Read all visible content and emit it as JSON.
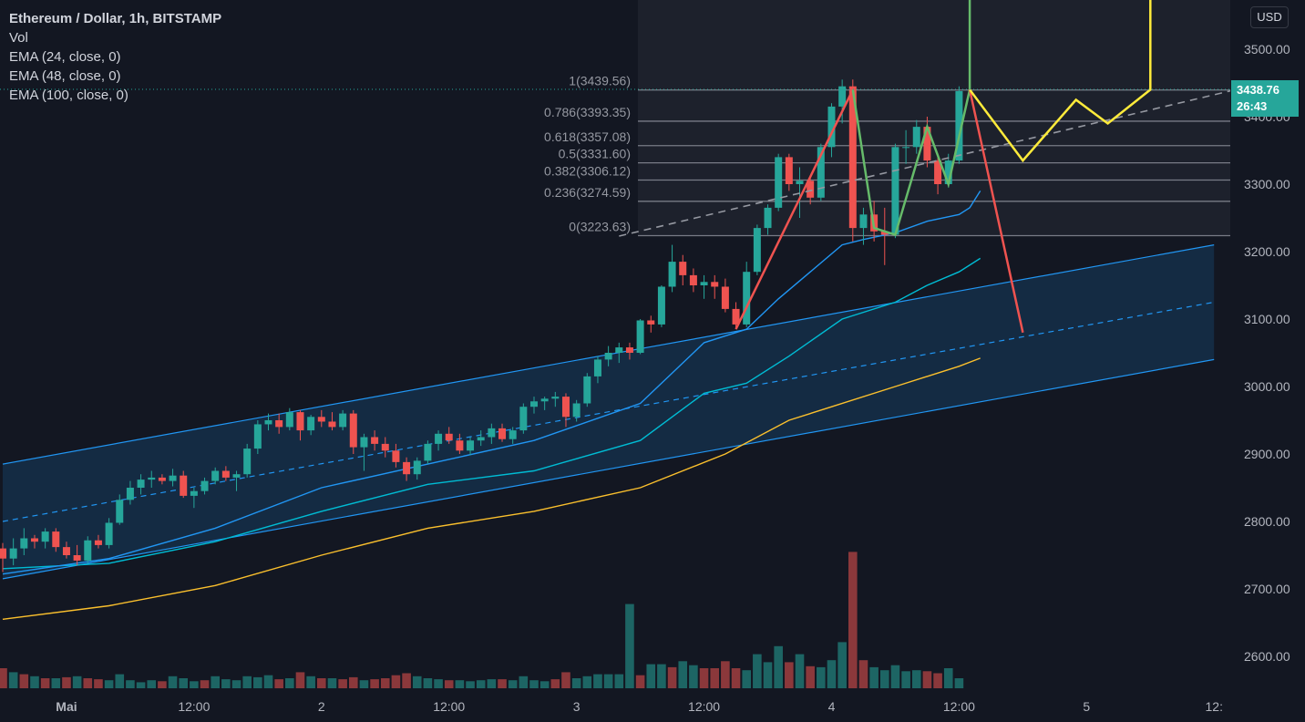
{
  "header": {
    "title": "Ethereum / Dollar, 1h, BITSTAMP",
    "indicators": [
      "Vol",
      "EMA (24, close, 0)",
      "EMA (48, close, 0)",
      "EMA (100, close, 0)"
    ]
  },
  "currency_button": "USD",
  "last_price": {
    "price": "3438.76",
    "countdown": "26:43"
  },
  "colors": {
    "background": "#131722",
    "up": "#26a69a",
    "down": "#ef5350",
    "ema24": "#2196f3",
    "ema48": "#00bcd4",
    "ema100": "#fbc02d",
    "channel": "#2196f3",
    "pattern_green": "#66bb6a",
    "pattern_red": "#ef5350",
    "projection_yellow": "#ffeb3b",
    "fib_line": "#787b86"
  },
  "chart_data": {
    "type": "candlestick",
    "y_axis": {
      "min": 2550,
      "max": 3580,
      "ticks": [
        "3500.00",
        "3400.00",
        "3300.00",
        "3200.00",
        "3100.00",
        "3000.00",
        "2900.00",
        "2800.00",
        "2700.00",
        "2600.00"
      ]
    },
    "x_axis": {
      "ticks": [
        {
          "label": "Mai",
          "bar": 6
        },
        {
          "label": "12:00",
          "bar": 18
        },
        {
          "label": "2",
          "bar": 30
        },
        {
          "label": "12:00",
          "bar": 42
        },
        {
          "label": "3",
          "bar": 54
        },
        {
          "label": "12:00",
          "bar": 66
        },
        {
          "label": "4",
          "bar": 78
        },
        {
          "label": "12:00",
          "bar": 90
        },
        {
          "label": "5",
          "bar": 102
        },
        {
          "label": "12:",
          "bar": 114
        }
      ]
    },
    "candles": [
      [
        2760,
        2768,
        2725,
        2745
      ],
      [
        2745,
        2775,
        2735,
        2760
      ],
      [
        2760,
        2790,
        2750,
        2775
      ],
      [
        2775,
        2780,
        2760,
        2770
      ],
      [
        2770,
        2790,
        2760,
        2785
      ],
      [
        2785,
        2790,
        2755,
        2762
      ],
      [
        2762,
        2770,
        2745,
        2750
      ],
      [
        2750,
        2765,
        2735,
        2742
      ],
      [
        2742,
        2778,
        2738,
        2772
      ],
      [
        2772,
        2780,
        2760,
        2765
      ],
      [
        2765,
        2805,
        2760,
        2798
      ],
      [
        2798,
        2840,
        2795,
        2832
      ],
      [
        2832,
        2860,
        2825,
        2850
      ],
      [
        2850,
        2870,
        2840,
        2862
      ],
      [
        2862,
        2875,
        2850,
        2865
      ],
      [
        2865,
        2870,
        2855,
        2860
      ],
      [
        2860,
        2878,
        2852,
        2868
      ],
      [
        2868,
        2875,
        2835,
        2838
      ],
      [
        2838,
        2850,
        2820,
        2845
      ],
      [
        2845,
        2865,
        2840,
        2860
      ],
      [
        2860,
        2880,
        2855,
        2875
      ],
      [
        2875,
        2882,
        2860,
        2865
      ],
      [
        2865,
        2875,
        2845,
        2870
      ],
      [
        2870,
        2915,
        2865,
        2908
      ],
      [
        2908,
        2950,
        2900,
        2944
      ],
      [
        2944,
        2960,
        2935,
        2950
      ],
      [
        2950,
        2960,
        2930,
        2940
      ],
      [
        2940,
        2968,
        2935,
        2962
      ],
      [
        2962,
        2965,
        2920,
        2935
      ],
      [
        2935,
        2958,
        2928,
        2955
      ],
      [
        2955,
        2965,
        2940,
        2948
      ],
      [
        2948,
        2962,
        2935,
        2940
      ],
      [
        2940,
        2965,
        2935,
        2960
      ],
      [
        2960,
        2965,
        2900,
        2910
      ],
      [
        2910,
        2930,
        2875,
        2925
      ],
      [
        2925,
        2935,
        2905,
        2915
      ],
      [
        2915,
        2925,
        2895,
        2905
      ],
      [
        2905,
        2915,
        2880,
        2888
      ],
      [
        2888,
        2895,
        2860,
        2870
      ],
      [
        2870,
        2895,
        2862,
        2890
      ],
      [
        2890,
        2920,
        2885,
        2915
      ],
      [
        2915,
        2935,
        2905,
        2930
      ],
      [
        2930,
        2940,
        2915,
        2920
      ],
      [
        2920,
        2930,
        2900,
        2905
      ],
      [
        2905,
        2925,
        2898,
        2920
      ],
      [
        2920,
        2935,
        2912,
        2925
      ],
      [
        2925,
        2945,
        2915,
        2938
      ],
      [
        2938,
        2945,
        2918,
        2922
      ],
      [
        2922,
        2940,
        2915,
        2935
      ],
      [
        2935,
        2975,
        2930,
        2970
      ],
      [
        2970,
        2985,
        2960,
        2978
      ],
      [
        2978,
        2985,
        2965,
        2982
      ],
      [
        2982,
        2992,
        2970,
        2985
      ],
      [
        2985,
        2990,
        2940,
        2955
      ],
      [
        2955,
        2980,
        2948,
        2975
      ],
      [
        2975,
        3020,
        2970,
        3015
      ],
      [
        3015,
        3045,
        3005,
        3040
      ],
      [
        3040,
        3060,
        3030,
        3050
      ],
      [
        3050,
        3065,
        3035,
        3058
      ],
      [
        3058,
        3065,
        3040,
        3050
      ],
      [
        3050,
        3100,
        3048,
        3098
      ],
      [
        3098,
        3105,
        3080,
        3092
      ],
      [
        3092,
        3150,
        3088,
        3148
      ],
      [
        3148,
        3210,
        3140,
        3185
      ],
      [
        3185,
        3195,
        3150,
        3165
      ],
      [
        3165,
        3175,
        3140,
        3150
      ],
      [
        3150,
        3165,
        3130,
        3155
      ],
      [
        3155,
        3165,
        3130,
        3148
      ],
      [
        3148,
        3160,
        3110,
        3115
      ],
      [
        3115,
        3125,
        3085,
        3092
      ],
      [
        3092,
        3185,
        3088,
        3170
      ],
      [
        3170,
        3240,
        3165,
        3235
      ],
      [
        3235,
        3270,
        3225,
        3265
      ],
      [
        3265,
        3345,
        3260,
        3340
      ],
      [
        3340,
        3345,
        3290,
        3300
      ],
      [
        3300,
        3325,
        3250,
        3305
      ],
      [
        3305,
        3310,
        3270,
        3280
      ],
      [
        3280,
        3360,
        3275,
        3355
      ],
      [
        3355,
        3420,
        3340,
        3415
      ],
      [
        3415,
        3455,
        3390,
        3445
      ],
      [
        3445,
        3455,
        3215,
        3235
      ],
      [
        3235,
        3265,
        3210,
        3255
      ],
      [
        3255,
        3275,
        3215,
        3230
      ],
      [
        3230,
        3265,
        3180,
        3225
      ],
      [
        3225,
        3360,
        3220,
        3355
      ],
      [
        3355,
        3380,
        3330,
        3355
      ],
      [
        3355,
        3395,
        3345,
        3385
      ],
      [
        3385,
        3400,
        3325,
        3335
      ],
      [
        3335,
        3345,
        3285,
        3300
      ],
      [
        3300,
        3345,
        3295,
        3335
      ],
      [
        3335,
        3445,
        3330,
        3438
      ]
    ],
    "volume": [
      [
        1,
        "dn"
      ],
      [
        0.8,
        "up"
      ],
      [
        0.7,
        "dn"
      ],
      [
        0.6,
        "up"
      ],
      [
        0.5,
        "dn"
      ],
      [
        0.5,
        "up"
      ],
      [
        0.55,
        "dn"
      ],
      [
        0.6,
        "up"
      ],
      [
        0.5,
        "dn"
      ],
      [
        0.45,
        "dn"
      ],
      [
        0.4,
        "up"
      ],
      [
        0.7,
        "up"
      ],
      [
        0.4,
        "up"
      ],
      [
        0.3,
        "up"
      ],
      [
        0.4,
        "up"
      ],
      [
        0.35,
        "dn"
      ],
      [
        0.6,
        "up"
      ],
      [
        0.5,
        "up"
      ],
      [
        0.35,
        "up"
      ],
      [
        0.4,
        "dn"
      ],
      [
        0.6,
        "up"
      ],
      [
        0.45,
        "up"
      ],
      [
        0.4,
        "up"
      ],
      [
        0.6,
        "up"
      ],
      [
        0.55,
        "up"
      ],
      [
        0.65,
        "up"
      ],
      [
        0.45,
        "dn"
      ],
      [
        0.5,
        "up"
      ],
      [
        0.8,
        "dn"
      ],
      [
        0.6,
        "up"
      ],
      [
        0.5,
        "dn"
      ],
      [
        0.5,
        "up"
      ],
      [
        0.45,
        "dn"
      ],
      [
        0.55,
        "dn"
      ],
      [
        0.4,
        "up"
      ],
      [
        0.45,
        "dn"
      ],
      [
        0.5,
        "dn"
      ],
      [
        0.65,
        "dn"
      ],
      [
        0.75,
        "dn"
      ],
      [
        0.6,
        "up"
      ],
      [
        0.5,
        "up"
      ],
      [
        0.45,
        "up"
      ],
      [
        0.4,
        "dn"
      ],
      [
        0.4,
        "up"
      ],
      [
        0.35,
        "up"
      ],
      [
        0.4,
        "up"
      ],
      [
        0.45,
        "up"
      ],
      [
        0.45,
        "dn"
      ],
      [
        0.4,
        "up"
      ],
      [
        0.6,
        "up"
      ],
      [
        0.4,
        "up"
      ],
      [
        0.35,
        "up"
      ],
      [
        0.45,
        "dn"
      ],
      [
        0.8,
        "dn"
      ],
      [
        0.5,
        "up"
      ],
      [
        0.6,
        "up"
      ],
      [
        0.7,
        "up"
      ],
      [
        0.7,
        "up"
      ],
      [
        0.7,
        "up"
      ],
      [
        4.2,
        "up"
      ],
      [
        0.65,
        "dn"
      ],
      [
        1.2,
        "up"
      ],
      [
        1.2,
        "up"
      ],
      [
        1.05,
        "dn"
      ],
      [
        1.35,
        "up"
      ],
      [
        1.15,
        "up"
      ],
      [
        1.0,
        "dn"
      ],
      [
        1.0,
        "dn"
      ],
      [
        1.35,
        "dn"
      ],
      [
        1.0,
        "dn"
      ],
      [
        0.9,
        "up"
      ],
      [
        1.7,
        "up"
      ],
      [
        1.3,
        "up"
      ],
      [
        2.1,
        "up"
      ],
      [
        1.3,
        "dn"
      ],
      [
        1.7,
        "up"
      ],
      [
        1.1,
        "dn"
      ],
      [
        1.05,
        "up"
      ],
      [
        1.4,
        "up"
      ],
      [
        2.3,
        "up"
      ],
      [
        6.8,
        "dn"
      ],
      [
        1.4,
        "dn"
      ],
      [
        1.05,
        "up"
      ],
      [
        0.9,
        "up"
      ],
      [
        1.15,
        "up"
      ],
      [
        0.85,
        "up"
      ],
      [
        0.9,
        "up"
      ],
      [
        0.85,
        "dn"
      ],
      [
        0.75,
        "dn"
      ],
      [
        1.0,
        "up"
      ],
      [
        0.5,
        "up"
      ]
    ],
    "ema24": [
      [
        0,
        2722
      ],
      [
        10,
        2745
      ],
      [
        20,
        2790
      ],
      [
        30,
        2850
      ],
      [
        40,
        2885
      ],
      [
        50,
        2920
      ],
      [
        60,
        2975
      ],
      [
        63,
        3020
      ],
      [
        66,
        3065
      ],
      [
        70,
        3085
      ],
      [
        73,
        3130
      ],
      [
        76,
        3170
      ],
      [
        79,
        3210
      ],
      [
        81,
        3218
      ],
      [
        84,
        3228
      ],
      [
        87,
        3245
      ],
      [
        90,
        3255
      ],
      [
        91,
        3265
      ],
      [
        92,
        3290
      ]
    ],
    "ema48": [
      [
        0,
        2730
      ],
      [
        10,
        2738
      ],
      [
        20,
        2770
      ],
      [
        30,
        2815
      ],
      [
        40,
        2855
      ],
      [
        50,
        2875
      ],
      [
        60,
        2920
      ],
      [
        66,
        2990
      ],
      [
        70,
        3005
      ],
      [
        74,
        3045
      ],
      [
        79,
        3100
      ],
      [
        84,
        3125
      ],
      [
        87,
        3150
      ],
      [
        90,
        3170
      ],
      [
        92,
        3190
      ]
    ],
    "ema100": [
      [
        0,
        2655
      ],
      [
        10,
        2675
      ],
      [
        20,
        2705
      ],
      [
        30,
        2750
      ],
      [
        40,
        2790
      ],
      [
        50,
        2815
      ],
      [
        60,
        2850
      ],
      [
        68,
        2900
      ],
      [
        74,
        2950
      ],
      [
        78,
        2970
      ],
      [
        84,
        3000
      ],
      [
        90,
        3030
      ],
      [
        92,
        3042
      ]
    ],
    "fib_levels": [
      {
        "ratio": "1",
        "price": 3439.56
      },
      {
        "ratio": "0.786",
        "price": 3393.35
      },
      {
        "ratio": "0.618",
        "price": 3357.08
      },
      {
        "ratio": "0.5",
        "price": 3331.6
      },
      {
        "ratio": "0.382",
        "price": 3306.12
      },
      {
        "ratio": "0.236",
        "price": 3274.59
      },
      {
        "ratio": "0",
        "price": 3223.63
      }
    ],
    "channel": {
      "upper": [
        [
          0,
          2885
        ],
        [
          114,
          3210
        ]
      ],
      "lower": [
        [
          0,
          2715
        ],
        [
          114,
          3040
        ]
      ],
      "mid": [
        [
          0,
          2800
        ],
        [
          114,
          3125
        ]
      ]
    },
    "trend_dashed": [
      [
        58,
        3223
      ],
      [
        116,
        3440
      ]
    ],
    "red_path": [
      [
        69,
        3085
      ],
      [
        80,
        3440
      ]
    ],
    "green_path": [
      [
        80,
        3440
      ],
      [
        82,
        3235
      ],
      [
        84,
        3225
      ],
      [
        87,
        3385
      ],
      [
        89,
        3300
      ],
      [
        91,
        3440
      ],
      [
        91,
        3600
      ]
    ],
    "red_projection": [
      [
        91,
        3440
      ],
      [
        96,
        3080
      ]
    ],
    "yellow_projection": [
      [
        91,
        3440
      ],
      [
        96,
        3335
      ],
      [
        101,
        3425
      ],
      [
        104,
        3390
      ],
      [
        108,
        3440
      ],
      [
        108,
        3600
      ]
    ]
  }
}
